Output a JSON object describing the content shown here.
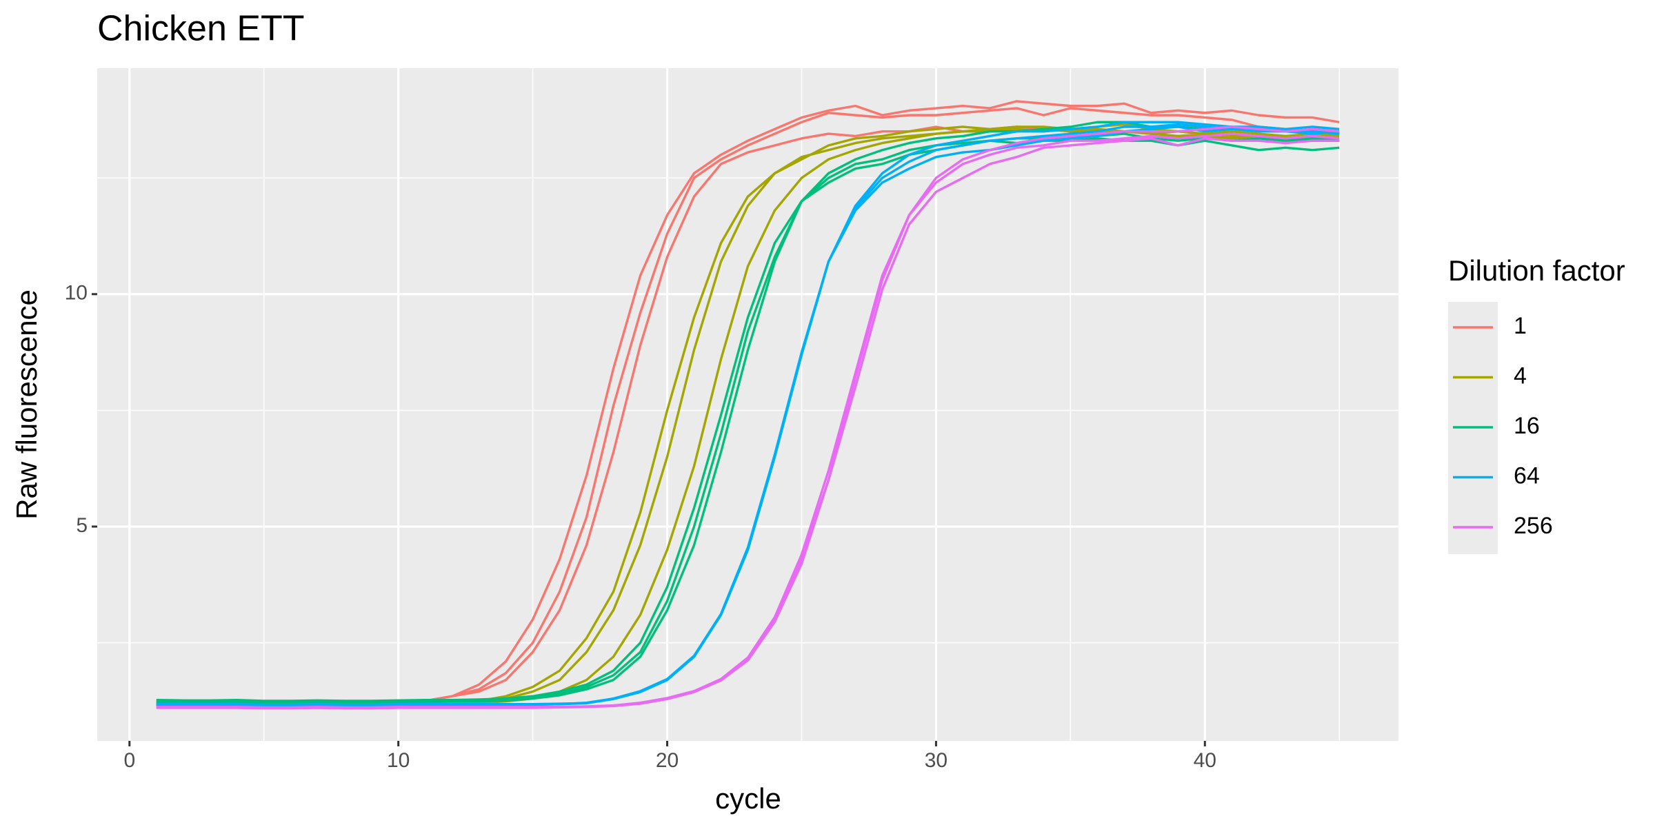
{
  "chart_data": {
    "type": "line",
    "title": "Chicken ETT",
    "x_label": "cycle",
    "y_label": "Raw fluorescence",
    "legend_title": "Dilution factor",
    "legend_position": "right",
    "grid": true,
    "x": [
      1,
      2,
      3,
      4,
      5,
      6,
      7,
      8,
      9,
      10,
      11,
      12,
      13,
      14,
      15,
      16,
      17,
      18,
      19,
      20,
      21,
      22,
      23,
      24,
      25,
      26,
      27,
      28,
      29,
      30,
      31,
      32,
      33,
      34,
      35,
      36,
      37,
      38,
      39,
      40,
      41,
      42,
      43,
      44,
      45
    ],
    "xlim": [
      -1.2,
      47.2
    ],
    "xticks": [
      0,
      10,
      20,
      30,
      40
    ],
    "minor_xticks": [
      5,
      15,
      25,
      35,
      45
    ],
    "ylim": [
      0.39,
      14.86
    ],
    "yticks": [
      5,
      10
    ],
    "minor_yticks": [
      2.5,
      7.5,
      12.5
    ],
    "series": [
      {
        "name": "1",
        "color": "#F8766D",
        "values": [
          [
            1.15,
            1.15,
            1.15,
            1.16,
            1.15,
            1.15,
            1.16,
            1.16,
            1.17,
            1.2,
            1.25,
            1.35,
            1.6,
            2.1,
            3.0,
            4.3,
            6.1,
            8.4,
            10.4,
            11.7,
            12.6,
            13.0,
            13.3,
            13.55,
            13.8,
            13.95,
            14.05,
            13.85,
            13.95,
            14.0,
            14.05,
            14.0,
            14.15,
            14.1,
            14.05,
            14.05,
            14.1,
            13.9,
            13.95,
            13.9,
            13.95,
            13.85,
            13.8,
            13.8,
            13.7
          ],
          [
            1.2,
            1.2,
            1.2,
            1.2,
            1.19,
            1.19,
            1.2,
            1.2,
            1.2,
            1.21,
            1.25,
            1.35,
            1.5,
            1.85,
            2.5,
            3.6,
            5.2,
            7.6,
            9.6,
            11.3,
            12.5,
            12.9,
            13.2,
            13.45,
            13.7,
            13.9,
            13.85,
            13.8,
            13.85,
            13.85,
            13.9,
            13.95,
            14.0,
            13.85,
            14.0,
            13.95,
            13.9,
            13.85,
            13.85,
            13.8,
            13.75,
            13.6,
            13.55,
            13.5,
            13.45
          ],
          [
            1.18,
            1.18,
            1.18,
            1.18,
            1.17,
            1.17,
            1.18,
            1.18,
            1.18,
            1.2,
            1.25,
            1.35,
            1.45,
            1.7,
            2.3,
            3.2,
            4.6,
            6.6,
            8.9,
            10.8,
            12.1,
            12.8,
            13.05,
            13.2,
            13.35,
            13.45,
            13.4,
            13.5,
            13.5,
            13.6,
            13.5,
            13.55,
            13.6,
            13.55,
            13.5,
            13.55,
            13.5,
            13.45,
            13.4,
            13.45,
            13.4,
            13.4,
            13.3,
            13.35,
            13.3
          ]
        ]
      },
      {
        "name": "4",
        "color": "#A3A500",
        "values": [
          [
            1.2,
            1.2,
            1.2,
            1.2,
            1.19,
            1.19,
            1.2,
            1.2,
            1.2,
            1.2,
            1.21,
            1.22,
            1.25,
            1.35,
            1.55,
            1.9,
            2.6,
            3.6,
            5.3,
            7.5,
            9.5,
            11.1,
            12.1,
            12.6,
            12.9,
            13.2,
            13.35,
            13.4,
            13.5,
            13.55,
            13.6,
            13.55,
            13.6,
            13.6,
            13.55,
            13.6,
            13.65,
            13.55,
            13.5,
            13.45,
            13.5,
            13.45,
            13.4,
            13.45,
            13.4
          ],
          [
            1.19,
            1.19,
            1.19,
            1.19,
            1.18,
            1.18,
            1.19,
            1.19,
            1.19,
            1.19,
            1.2,
            1.21,
            1.23,
            1.3,
            1.45,
            1.7,
            2.3,
            3.2,
            4.6,
            6.5,
            8.8,
            10.7,
            11.9,
            12.6,
            12.95,
            13.1,
            13.25,
            13.35,
            13.4,
            13.45,
            13.5,
            13.5,
            13.55,
            13.5,
            13.55,
            13.5,
            13.5,
            13.45,
            13.4,
            13.4,
            13.35,
            13.4,
            13.35,
            13.3,
            13.3
          ],
          [
            1.18,
            1.18,
            1.18,
            1.18,
            1.17,
            1.17,
            1.18,
            1.18,
            1.18,
            1.18,
            1.19,
            1.2,
            1.21,
            1.24,
            1.3,
            1.45,
            1.7,
            2.2,
            3.1,
            4.5,
            6.3,
            8.6,
            10.6,
            11.8,
            12.5,
            12.9,
            13.1,
            13.25,
            13.35,
            13.45,
            13.5,
            13.55,
            13.5,
            13.55,
            13.5,
            13.55,
            13.5,
            13.45,
            13.5,
            13.45,
            13.4,
            13.4,
            13.35,
            13.35,
            13.3
          ]
        ]
      },
      {
        "name": "16",
        "color": "#00BF7D",
        "values": [
          [
            1.27,
            1.26,
            1.26,
            1.27,
            1.25,
            1.25,
            1.26,
            1.25,
            1.25,
            1.26,
            1.27,
            1.27,
            1.28,
            1.3,
            1.35,
            1.45,
            1.6,
            1.9,
            2.5,
            3.7,
            5.4,
            7.4,
            9.5,
            11.1,
            12.0,
            12.6,
            12.9,
            13.1,
            13.25,
            13.35,
            13.4,
            13.5,
            13.5,
            13.55,
            13.6,
            13.7,
            13.7,
            13.6,
            13.6,
            13.55,
            13.6,
            13.55,
            13.5,
            13.5,
            13.45
          ],
          [
            1.25,
            1.25,
            1.25,
            1.25,
            1.24,
            1.24,
            1.25,
            1.24,
            1.24,
            1.25,
            1.25,
            1.26,
            1.26,
            1.28,
            1.32,
            1.4,
            1.55,
            1.8,
            2.3,
            3.4,
            5.0,
            7.0,
            9.2,
            10.8,
            12.0,
            12.5,
            12.8,
            12.9,
            13.1,
            13.2,
            13.25,
            13.3,
            13.35,
            13.35,
            13.4,
            13.4,
            13.45,
            13.35,
            13.3,
            13.35,
            13.3,
            13.35,
            13.3,
            13.35,
            13.3
          ],
          [
            1.23,
            1.23,
            1.23,
            1.23,
            1.22,
            1.22,
            1.23,
            1.22,
            1.22,
            1.23,
            1.23,
            1.24,
            1.24,
            1.26,
            1.3,
            1.37,
            1.5,
            1.7,
            2.2,
            3.2,
            4.6,
            6.6,
            8.8,
            10.7,
            12.0,
            12.4,
            12.7,
            12.8,
            13.0,
            13.1,
            13.2,
            13.3,
            13.25,
            13.3,
            13.3,
            13.35,
            13.3,
            13.3,
            13.2,
            13.3,
            13.2,
            13.1,
            13.15,
            13.1,
            13.15
          ]
        ]
      },
      {
        "name": "64",
        "color": "#00B0F6",
        "values": [
          [
            1.18,
            1.18,
            1.18,
            1.18,
            1.17,
            1.17,
            1.18,
            1.17,
            1.17,
            1.18,
            1.18,
            1.18,
            1.18,
            1.18,
            1.18,
            1.19,
            1.2,
            1.3,
            1.45,
            1.7,
            2.2,
            3.1,
            4.5,
            6.5,
            8.7,
            10.7,
            11.9,
            12.6,
            13.0,
            13.2,
            13.3,
            13.4,
            13.5,
            13.5,
            13.55,
            13.6,
            13.7,
            13.7,
            13.7,
            13.65,
            13.6,
            13.6,
            13.55,
            13.6,
            13.55
          ],
          [
            1.16,
            1.16,
            1.16,
            1.16,
            1.15,
            1.15,
            1.16,
            1.15,
            1.15,
            1.16,
            1.16,
            1.16,
            1.16,
            1.16,
            1.17,
            1.18,
            1.2,
            1.29,
            1.44,
            1.7,
            2.2,
            3.1,
            4.5,
            6.5,
            8.7,
            10.7,
            11.8,
            12.4,
            12.7,
            12.95,
            13.05,
            13.1,
            13.2,
            13.3,
            13.35,
            13.4,
            13.5,
            13.55,
            13.6,
            13.5,
            13.55,
            13.5,
            13.5,
            13.45,
            13.5
          ],
          [
            1.17,
            1.17,
            1.17,
            1.17,
            1.16,
            1.16,
            1.17,
            1.16,
            1.16,
            1.17,
            1.17,
            1.17,
            1.17,
            1.17,
            1.17,
            1.18,
            1.21,
            1.3,
            1.46,
            1.72,
            2.22,
            3.12,
            4.55,
            6.55,
            8.75,
            10.7,
            11.85,
            12.5,
            12.85,
            13.1,
            13.2,
            13.3,
            13.35,
            13.4,
            13.45,
            13.5,
            13.6,
            13.6,
            13.65,
            13.6,
            13.55,
            13.55,
            13.5,
            13.5,
            13.45
          ]
        ]
      },
      {
        "name": "256",
        "color": "#E76BF3",
        "values": [
          [
            1.12,
            1.12,
            1.12,
            1.12,
            1.11,
            1.11,
            1.12,
            1.11,
            1.11,
            1.12,
            1.12,
            1.12,
            1.12,
            1.12,
            1.12,
            1.12,
            1.13,
            1.15,
            1.2,
            1.3,
            1.45,
            1.7,
            2.15,
            3.0,
            4.3,
            6.0,
            8.2,
            10.3,
            11.7,
            12.5,
            12.9,
            13.1,
            13.25,
            13.35,
            13.4,
            13.45,
            13.5,
            13.5,
            13.5,
            13.55,
            13.6,
            13.55,
            13.5,
            13.55,
            13.5
          ],
          [
            1.1,
            1.1,
            1.1,
            1.1,
            1.09,
            1.09,
            1.1,
            1.09,
            1.09,
            1.1,
            1.1,
            1.1,
            1.1,
            1.1,
            1.1,
            1.11,
            1.12,
            1.14,
            1.19,
            1.29,
            1.44,
            1.69,
            2.12,
            2.95,
            4.2,
            6.0,
            8.0,
            10.1,
            11.5,
            12.2,
            12.5,
            12.8,
            12.95,
            13.15,
            13.2,
            13.25,
            13.3,
            13.35,
            13.2,
            13.35,
            13.3,
            13.3,
            13.25,
            13.3,
            13.3
          ],
          [
            1.11,
            1.11,
            1.11,
            1.11,
            1.1,
            1.1,
            1.11,
            1.1,
            1.1,
            1.11,
            1.11,
            1.11,
            1.11,
            1.11,
            1.11,
            1.12,
            1.13,
            1.15,
            1.21,
            1.31,
            1.46,
            1.72,
            2.18,
            3.05,
            4.4,
            6.2,
            8.3,
            10.4,
            11.7,
            12.4,
            12.8,
            13.0,
            13.15,
            13.2,
            13.3,
            13.3,
            13.35,
            13.4,
            13.35,
            13.4,
            13.45,
            13.4,
            13.35,
            13.4,
            13.35
          ]
        ]
      }
    ]
  }
}
